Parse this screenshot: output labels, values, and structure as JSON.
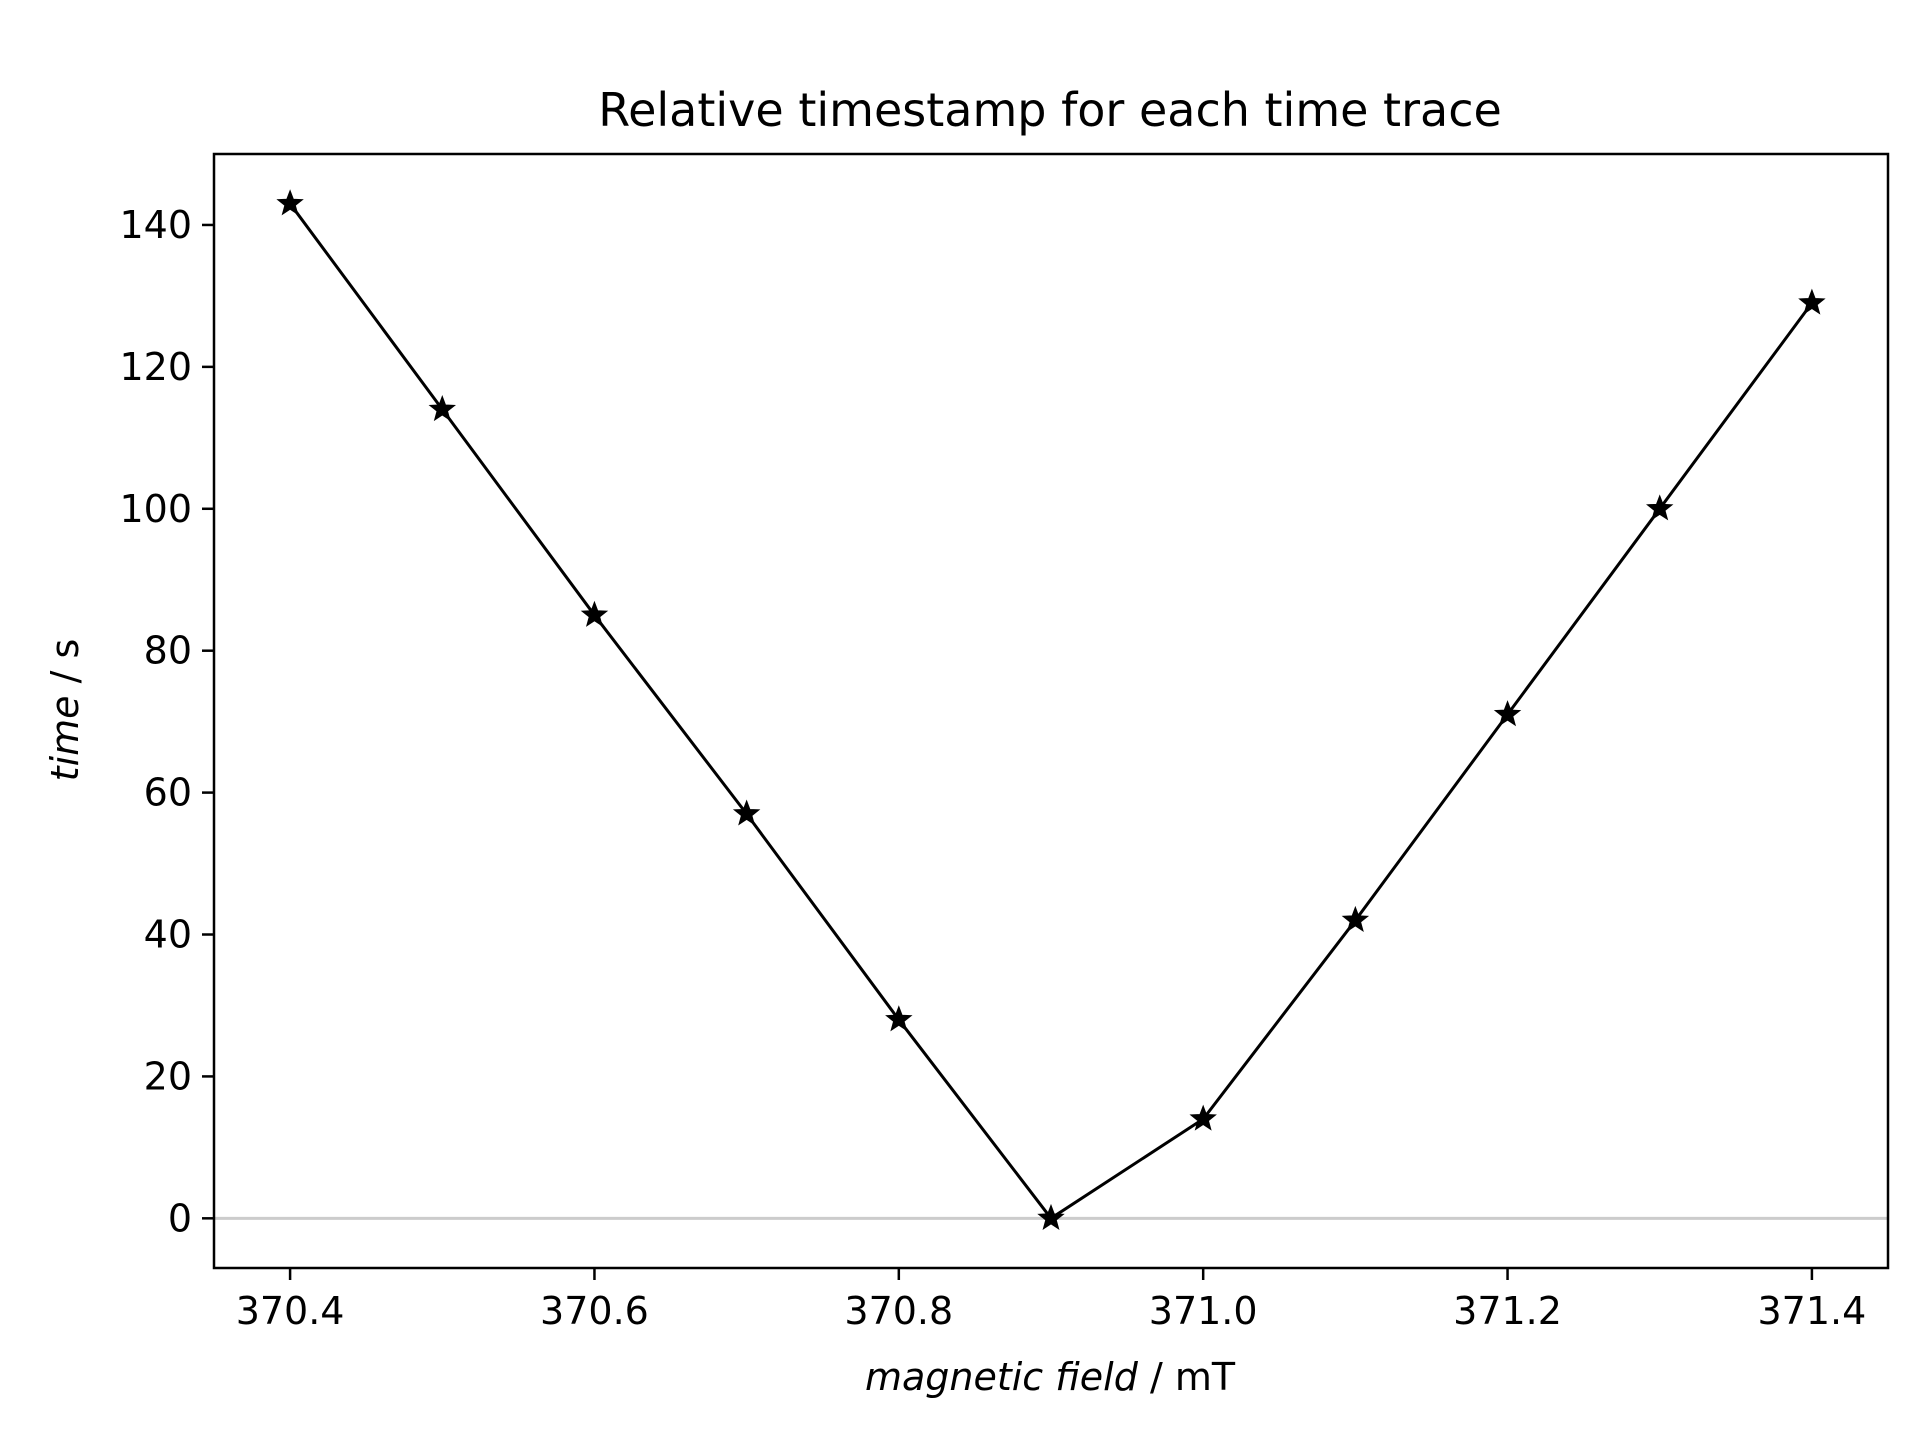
{
  "chart_data": {
    "type": "line",
    "title": "Relative timestamp for each time trace",
    "xlabel": {
      "italic": "magnetic field",
      "unit": " / mT"
    },
    "ylabel": {
      "italic": "time",
      "unit": " / s"
    },
    "xlim": [
      370.35,
      371.45
    ],
    "ylim": [
      -7,
      150
    ],
    "x_ticks": [
      370.4,
      370.6,
      370.8,
      371.0,
      371.2,
      371.4
    ],
    "x_tick_labels": [
      "370.4",
      "370.6",
      "370.8",
      "371.0",
      "371.2",
      "371.4"
    ],
    "y_ticks": [
      0,
      20,
      40,
      60,
      80,
      100,
      120,
      140
    ],
    "y_tick_labels": [
      "0",
      "20",
      "40",
      "60",
      "80",
      "100",
      "120",
      "140"
    ],
    "reference_line_y": 0,
    "grid": false,
    "series": [
      {
        "marker": "star",
        "color": "#000000",
        "x": [
          370.4,
          370.5,
          370.6,
          370.7,
          370.8,
          370.9,
          371.0,
          371.1,
          371.2,
          371.3,
          371.4
        ],
        "y": [
          143,
          114,
          85,
          57,
          28,
          0,
          14,
          42,
          71,
          100,
          129
        ]
      }
    ]
  }
}
